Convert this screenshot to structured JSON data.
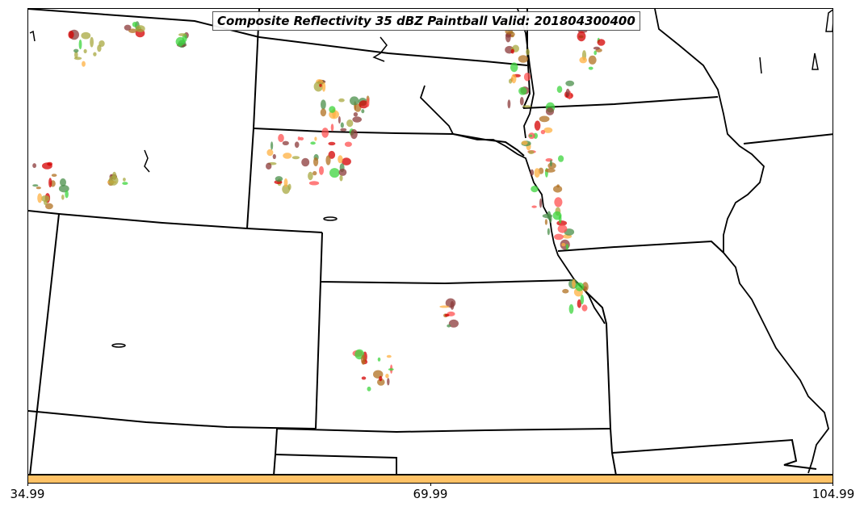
{
  "title": "Composite Reflectivity 35 dBZ Paintball Valid: 201804300400",
  "colorbar": {
    "color": "#ffc266",
    "ticks": [
      {
        "label": "34.99",
        "value": 34.99
      },
      {
        "label": "69.99",
        "value": 69.99
      },
      {
        "label": "104.99",
        "value": 104.99
      }
    ],
    "min": 34.99,
    "max": 104.99
  },
  "paintball_colors": [
    "#8b3a3a",
    "#3cd43c",
    "#ff5050",
    "#a8a840",
    "#ffb040",
    "#d40000",
    "#4a8f4a",
    "#b07020"
  ],
  "colors": {
    "background": "#ffffff",
    "state_lines": "#000000"
  }
}
